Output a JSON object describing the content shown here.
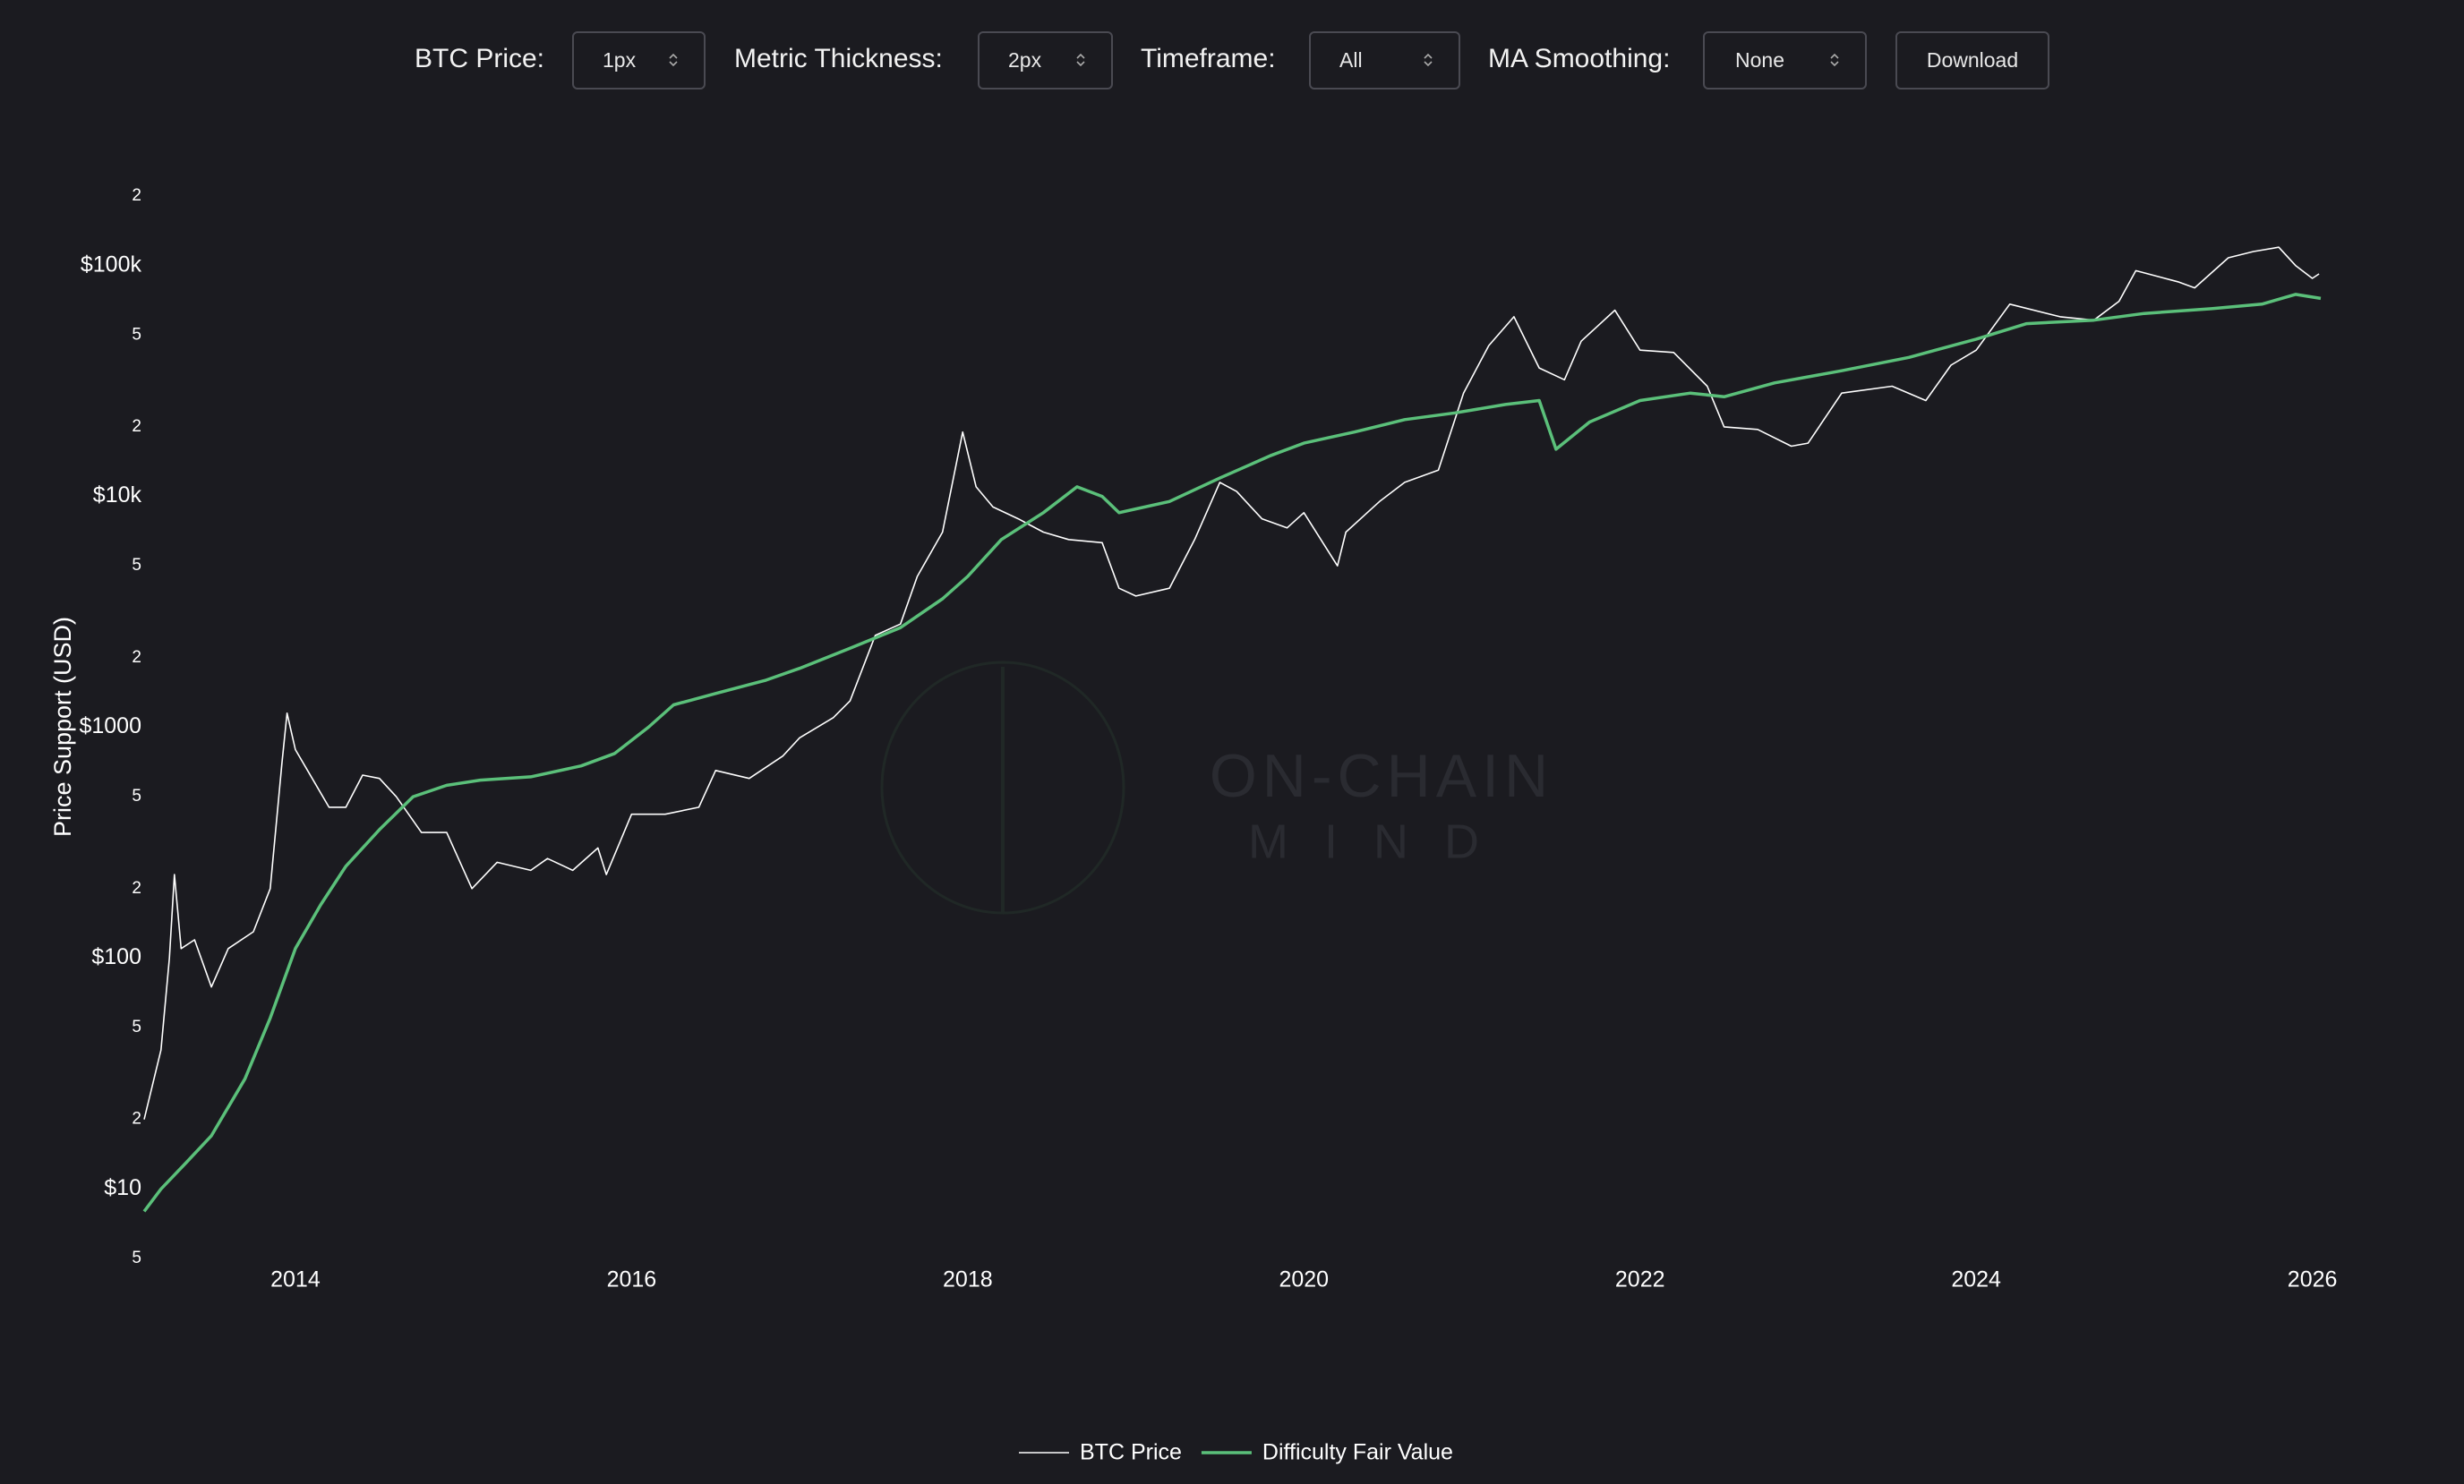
{
  "controls": [
    {
      "label": "BTC Price:",
      "value": "1px"
    },
    {
      "label": "Metric Thickness:",
      "value": "2px"
    },
    {
      "label": "Timeframe:",
      "value": "All"
    },
    {
      "label": "MA Smoothing:",
      "value": "None"
    }
  ],
  "download": "Download",
  "watermark": {
    "line1": "ON-CHAIN",
    "line2": "MIND"
  },
  "chart_data": {
    "type": "line",
    "y_label": "Price Support (USD)",
    "yscale": "log",
    "grid": false,
    "legend": "bottom",
    "xlim": [
      2013.1,
      2026.05
    ],
    "xticks": [
      2014,
      2016,
      2018,
      2020,
      2022,
      2024,
      2026
    ],
    "ylim": [
      5,
      200000
    ],
    "yticks": [
      5,
      {
        "value": 10,
        "label": "$10"
      },
      {
        "value": 20,
        "label": "2"
      },
      {
        "value": 50,
        "label": "5"
      },
      {
        "value": 100,
        "label": "$100"
      },
      {
        "value": 200,
        "label": "2"
      },
      {
        "value": 500,
        "label": "5"
      },
      {
        "value": 1000,
        "label": "$1000"
      },
      {
        "value": 2000,
        "label": "2"
      },
      {
        "value": 5000,
        "label": "5"
      },
      {
        "value": 10000,
        "label": "$10k"
      },
      {
        "value": 20000,
        "label": "2"
      },
      {
        "value": 50000,
        "label": "5"
      },
      {
        "value": 100000,
        "label": "$100k"
      },
      {
        "value": 200000,
        "label": "2"
      }
    ],
    "series": [
      {
        "name": "BTC Price",
        "color": "#ffffff",
        "width": 1.6,
        "x": [
          2013.1,
          2013.2,
          2013.25,
          2013.28,
          2013.32,
          2013.4,
          2013.5,
          2013.6,
          2013.75,
          2013.85,
          2013.92,
          2013.95,
          2014.0,
          2014.1,
          2014.2,
          2014.3,
          2014.4,
          2014.5,
          2014.6,
          2014.75,
          2014.9,
          2015.05,
          2015.2,
          2015.4,
          2015.5,
          2015.65,
          2015.8,
          2015.85,
          2016.0,
          2016.2,
          2016.4,
          2016.5,
          2016.7,
          2016.9,
          2017.0,
          2017.2,
          2017.3,
          2017.45,
          2017.6,
          2017.7,
          2017.85,
          2017.97,
          2018.05,
          2018.15,
          2018.3,
          2018.45,
          2018.6,
          2018.8,
          2018.9,
          2019.0,
          2019.2,
          2019.35,
          2019.5,
          2019.6,
          2019.75,
          2019.9,
          2020.0,
          2020.2,
          2020.25,
          2020.45,
          2020.6,
          2020.8,
          2020.95,
          2021.1,
          2021.25,
          2021.4,
          2021.55,
          2021.65,
          2021.85,
          2022.0,
          2022.2,
          2022.4,
          2022.5,
          2022.7,
          2022.9,
          2023.0,
          2023.2,
          2023.5,
          2023.7,
          2023.85,
          2024.0,
          2024.2,
          2024.5,
          2024.7,
          2024.85,
          2024.95,
          2025.2,
          2025.3,
          2025.5,
          2025.65,
          2025.8,
          2025.9,
          2026.0,
          2026.04
        ],
        "values": [
          20,
          40,
          100,
          230,
          110,
          120,
          75,
          110,
          130,
          200,
          700,
          1150,
          800,
          600,
          450,
          450,
          620,
          600,
          500,
          350,
          350,
          200,
          260,
          240,
          270,
          240,
          300,
          230,
          420,
          420,
          450,
          650,
          600,
          750,
          900,
          1100,
          1300,
          2500,
          2800,
          4500,
          7000,
          19000,
          11000,
          9000,
          8000,
          7000,
          6500,
          6300,
          4000,
          3700,
          4000,
          6500,
          11500,
          10500,
          8000,
          7300,
          8500,
          5000,
          7000,
          9500,
          11500,
          13000,
          28000,
          45000,
          60000,
          36000,
          32000,
          47000,
          64000,
          43000,
          42000,
          30000,
          20000,
          19500,
          16500,
          17000,
          28000,
          30000,
          26000,
          37000,
          43000,
          68000,
          60000,
          58000,
          70000,
          95000,
          85000,
          80000,
          108000,
          115000,
          120000,
          100000,
          88000,
          92000
        ]
      },
      {
        "name": "Difficulty Fair Value",
        "color": "#5bc07a",
        "width": 3.5,
        "x": [
          2013.1,
          2013.2,
          2013.35,
          2013.5,
          2013.7,
          2013.85,
          2014.0,
          2014.15,
          2014.3,
          2014.5,
          2014.7,
          2014.9,
          2015.1,
          2015.4,
          2015.7,
          2015.9,
          2016.1,
          2016.25,
          2016.5,
          2016.8,
          2017.0,
          2017.3,
          2017.6,
          2017.85,
          2018.0,
          2018.2,
          2018.45,
          2018.65,
          2018.8,
          2018.9,
          2019.2,
          2019.5,
          2019.8,
          2020.0,
          2020.3,
          2020.6,
          2020.9,
          2021.2,
          2021.4,
          2021.5,
          2021.7,
          2022.0,
          2022.3,
          2022.5,
          2022.8,
          2023.2,
          2023.6,
          2024.0,
          2024.3,
          2024.7,
          2025.0,
          2025.4,
          2025.7,
          2025.9,
          2026.05
        ],
        "values": [
          8,
          10,
          13,
          17,
          30,
          55,
          110,
          170,
          250,
          360,
          500,
          560,
          590,
          610,
          680,
          770,
          1000,
          1250,
          1400,
          1600,
          1800,
          2200,
          2700,
          3600,
          4500,
          6500,
          8500,
          11000,
          10000,
          8500,
          9500,
          12000,
          15000,
          17000,
          19000,
          21500,
          23000,
          25000,
          26000,
          16000,
          21000,
          26000,
          28000,
          27000,
          31000,
          35000,
          40000,
          48000,
          56000,
          58000,
          62000,
          65000,
          68000,
          75000,
          72000
        ]
      }
    ]
  }
}
